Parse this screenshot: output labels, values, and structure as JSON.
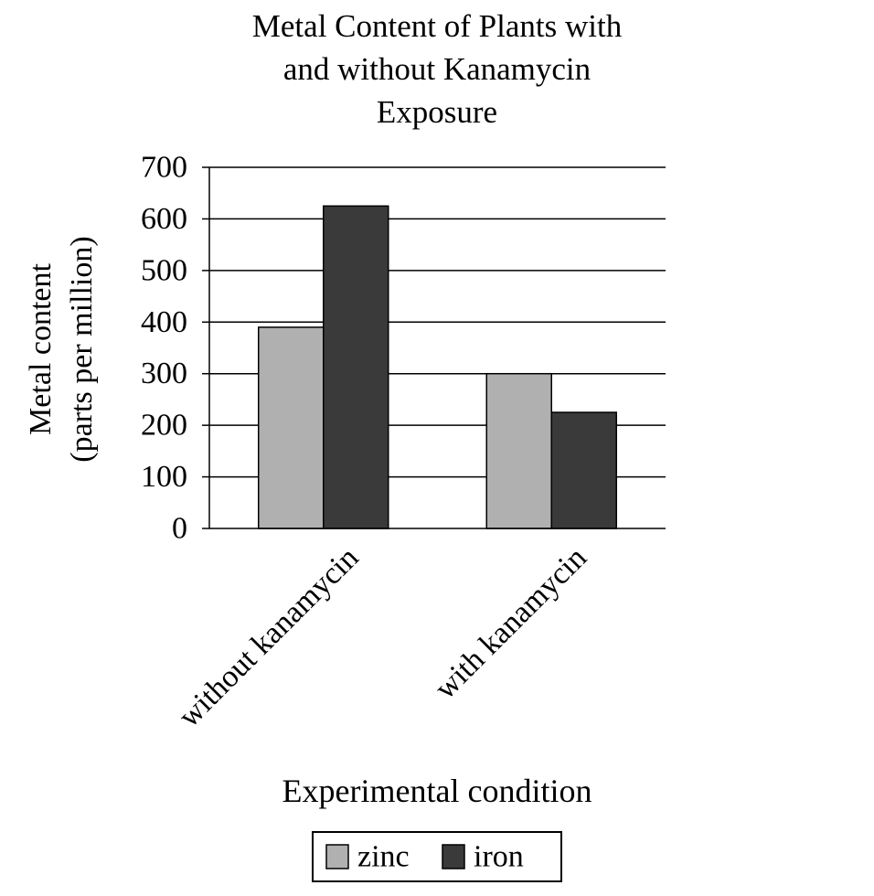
{
  "chart_data": {
    "type": "bar",
    "title_lines": [
      "Metal Content of Plants with",
      "and without Kanamycin",
      "Exposure"
    ],
    "title": "Metal Content of Plants with and without Kanamycin Exposure",
    "xlabel": "Experimental condition",
    "ylabel_lines": [
      "Metal content",
      "(parts per million)"
    ],
    "categories": [
      "without kanamycin",
      "with kanamycin"
    ],
    "series": [
      {
        "name": "zinc",
        "values": [
          390,
          300
        ],
        "color": "#b0b0b0"
      },
      {
        "name": "iron",
        "values": [
          625,
          225
        ],
        "color": "#3a3a3a"
      }
    ],
    "ylim": [
      0,
      700
    ],
    "yticks": [
      0,
      100,
      200,
      300,
      400,
      500,
      600,
      700
    ],
    "grid": true,
    "legend_position": "bottom"
  }
}
